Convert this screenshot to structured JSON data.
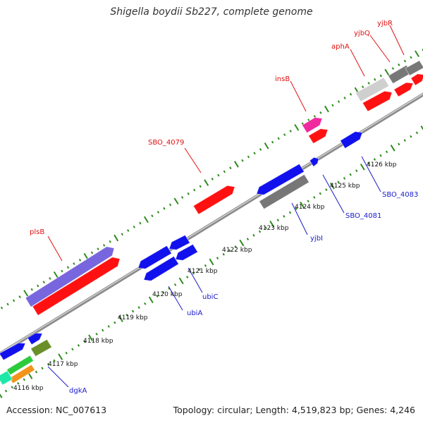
{
  "title": "Shigella boydii Sb227, complete genome",
  "accession": "Accession: NC_007613",
  "summary": "Topology: circular; Length: 4,519,823 bp; Genes: 4,246",
  "colors": {
    "forward_label": "#e01010",
    "reverse_label": "#1a1acc",
    "backbone": "#8c8c8c",
    "tick": "#2e8b1e",
    "red": "#ff1111",
    "blue": "#1111ee",
    "purple": "#7766dd",
    "gray_dark": "#777777",
    "gray_light": "#cfcfcf",
    "magenta": "#ee2a9e",
    "olive": "#6a8f2a",
    "green": "#2ccb3c",
    "orange": "#f2941c",
    "teal": "#1ee8a8"
  },
  "scale_labels": [
    "4116 kbp",
    "4117 kbp",
    "4118 kbp",
    "4119 kbp",
    "4120 kbp",
    "4121 kbp",
    "4122 kbp",
    "4123 kbp",
    "4124 kbp",
    "4125 kbp",
    "4126 kbp"
  ],
  "forward_labels": [
    "plsB",
    "SBO_4079",
    "insB",
    "aphA",
    "yjbQ",
    "yjbR"
  ],
  "reverse_labels": [
    "dgkA",
    "ubiA",
    "ubiC",
    "yjbI",
    "SBO_4081",
    "SBO_4083"
  ]
}
